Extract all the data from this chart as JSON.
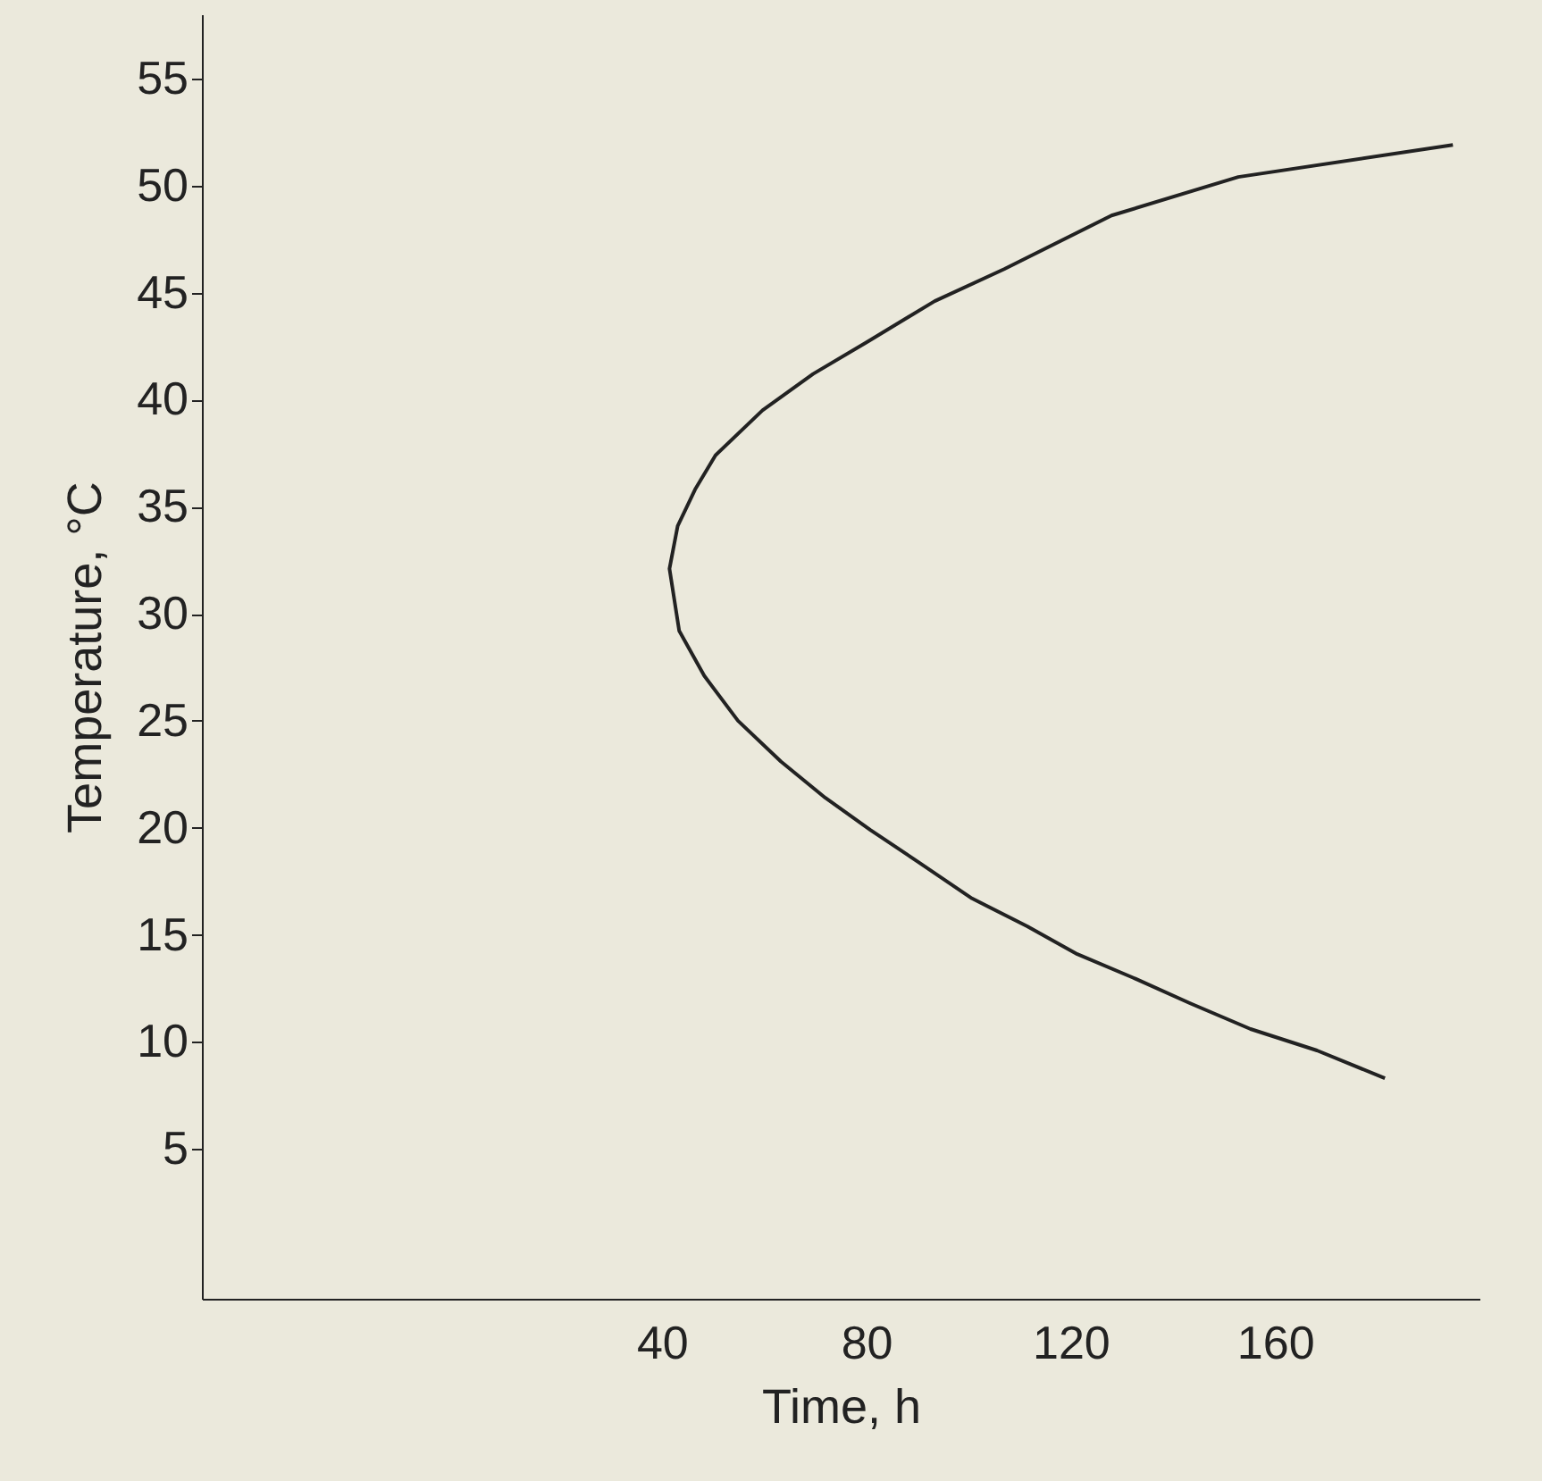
{
  "chart_data": {
    "type": "line",
    "xlabel": "Time, h",
    "ylabel": "Temperature, °C",
    "series": [
      {
        "color": "#222222",
        "x": [
          194.8,
          152.8,
          128,
          107,
          93.4,
          80.2,
          69.6,
          59.7,
          50.5,
          46.5,
          43.1,
          41.5,
          43.4,
          48.3,
          54.9,
          63.3,
          72,
          80.8,
          90.2,
          100.7,
          111.5,
          121.3,
          132.2,
          143.4,
          155.2,
          168.2,
          181.5
        ],
        "values": [
          51.9,
          50.4,
          48.6,
          46.1,
          44.6,
          42.7,
          41.2,
          39.5,
          37.4,
          35.8,
          34.1,
          32.1,
          29.2,
          27.1,
          25,
          23.1,
          21.4,
          19.9,
          18.4,
          16.7,
          15.4,
          14.1,
          13,
          11.8,
          10.6,
          9.6,
          8.3
        ]
      }
    ],
    "xlim": [
      -50,
      200
    ],
    "xticks": [
      40,
      80,
      120,
      160
    ],
    "ylim": [
      -2,
      58
    ],
    "yticks": [
      5,
      10,
      15,
      20,
      25,
      30,
      35,
      40,
      45,
      50,
      55
    ],
    "grid": false,
    "marker": "none",
    "line_style": "solid"
  }
}
